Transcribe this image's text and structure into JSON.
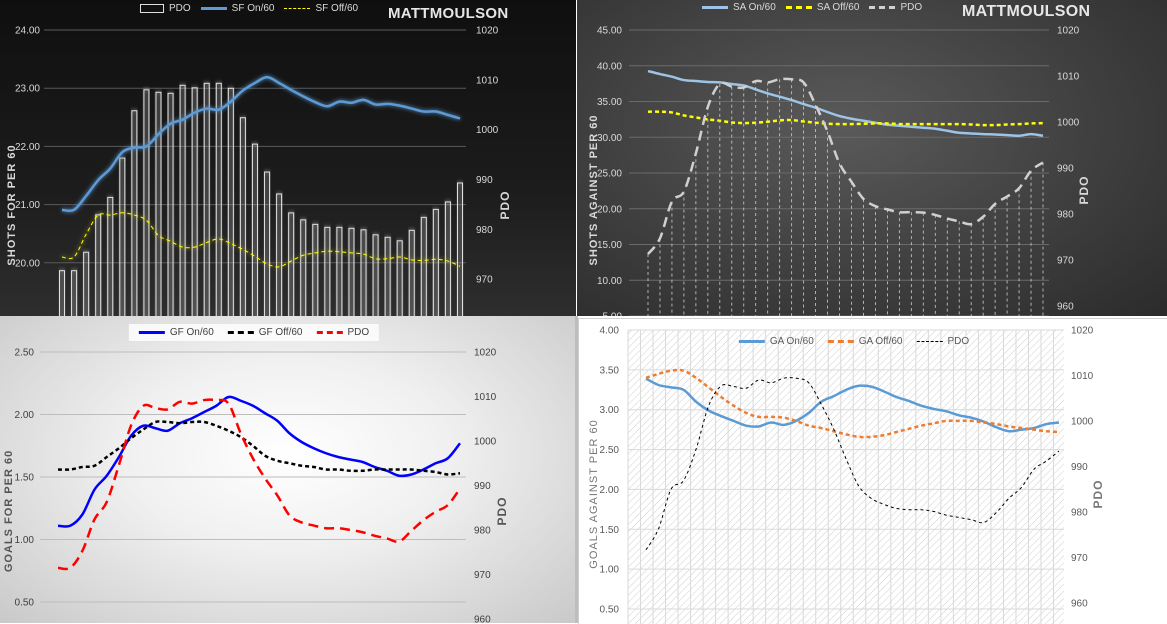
{
  "chart_data": [
    {
      "type": "bar+line",
      "watermark": "MATTMOULSON",
      "ylabel": "SHOTS FOR PER 60",
      "y2label": "PDO",
      "ylim": [
        19,
        24
      ],
      "y2lim": [
        960,
        1020
      ],
      "yticks": [
        "24.00",
        "23.00",
        "22.00",
        "21.00",
        "20.00"
      ],
      "y2ticks": [
        "1020",
        "1010",
        "1000",
        "990",
        "980",
        "970"
      ],
      "grid": true,
      "legend": "top-center",
      "series": [
        {
          "name": "PDO",
          "axis": "right",
          "kind": "bar",
          "color": "#e0e0e0",
          "values": [
            971.7,
            971.7,
            975.4,
            982.9,
            986.4,
            994.3,
            1003.8,
            1008.0,
            1007.5,
            1007.3,
            1008.9,
            1008.4,
            1009.3,
            1009.3,
            1008.3,
            1002.4,
            997.1,
            991.5,
            987.1,
            983.3,
            981.9,
            981.0,
            980.4,
            980.4,
            980.2,
            979.9,
            978.9,
            978.4,
            977.7,
            979.8,
            982.4,
            984.0,
            985.5,
            989.3
          ]
        },
        {
          "name": "SF On/60",
          "axis": "left",
          "kind": "line",
          "color": "#5b9bd5",
          "values": [
            20.91,
            20.91,
            21.15,
            21.42,
            21.62,
            21.9,
            21.98,
            22.0,
            22.21,
            22.39,
            22.46,
            22.58,
            22.65,
            22.63,
            22.77,
            22.96,
            23.09,
            23.19,
            23.09,
            22.97,
            22.86,
            22.76,
            22.69,
            22.77,
            22.75,
            22.8,
            22.72,
            22.73,
            22.7,
            22.65,
            22.6,
            22.6,
            22.54,
            22.48
          ]
        },
        {
          "name": "SF Off/60",
          "axis": "left",
          "kind": "dashed",
          "color": "#ffff00",
          "values": [
            20.1,
            20.1,
            20.49,
            20.82,
            20.82,
            20.86,
            20.82,
            20.73,
            20.47,
            20.37,
            20.27,
            20.27,
            20.35,
            20.41,
            20.33,
            20.23,
            20.11,
            19.98,
            19.93,
            20.03,
            20.13,
            20.17,
            20.2,
            20.19,
            20.17,
            20.15,
            20.07,
            20.07,
            20.1,
            20.05,
            20.04,
            20.06,
            20.03,
            19.94
          ]
        }
      ]
    },
    {
      "type": "line",
      "watermark": "MATTMOULSON",
      "ylabel": "SHOTS AGAINST PER 60",
      "y2label": "PDO",
      "ylim": [
        5,
        45
      ],
      "y2lim": [
        960,
        1020
      ],
      "yticks": [
        "45.00",
        "40.00",
        "35.00",
        "30.00",
        "25.00",
        "20.00",
        "15.00",
        "10.00",
        "5.00"
      ],
      "y2ticks": [
        "1020",
        "1010",
        "1000",
        "990",
        "980",
        "970",
        "960"
      ],
      "grid": true,
      "legend": "top-center",
      "series": [
        {
          "name": "SA On/60",
          "axis": "left",
          "kind": "line",
          "color": "#9dc3e6",
          "values": [
            39.26,
            38.84,
            38.47,
            38.0,
            37.86,
            37.72,
            37.67,
            37.44,
            37.25,
            36.69,
            36.13,
            35.67,
            35.2,
            34.64,
            34.13,
            33.52,
            32.96,
            32.59,
            32.31,
            32.03,
            31.75,
            31.61,
            31.47,
            31.33,
            31.19,
            30.91,
            30.63,
            30.53,
            30.44,
            30.39,
            30.3,
            30.21,
            30.44,
            30.21
          ]
        },
        {
          "name": "SA Off/60",
          "axis": "left",
          "kind": "dashed",
          "color": "#ffff00",
          "values": [
            33.57,
            33.57,
            33.47,
            33.05,
            32.77,
            32.49,
            32.31,
            32.07,
            31.98,
            32.03,
            32.17,
            32.36,
            32.4,
            32.21,
            32.03,
            31.89,
            31.84,
            31.84,
            31.89,
            31.93,
            31.93,
            31.84,
            31.84,
            31.84,
            31.84,
            31.84,
            31.84,
            31.79,
            31.7,
            31.7,
            31.79,
            31.84,
            31.93,
            31.98
          ]
        },
        {
          "name": "PDO",
          "axis": "right",
          "kind": "longdash",
          "color": "#d0d0d0",
          "values": [
            971.3,
            974.7,
            982.7,
            984.9,
            993.2,
            1003.3,
            1008.3,
            1007.7,
            1007.5,
            1008.9,
            1008.6,
            1009.3,
            1009.3,
            1008.6,
            1003.7,
            997.9,
            991.0,
            987.0,
            983.3,
            981.7,
            981.0,
            980.4,
            980.4,
            980.3,
            979.8,
            979.0,
            978.4,
            977.8,
            979.4,
            982.2,
            983.8,
            985.6,
            989.4,
            991.2
          ]
        }
      ]
    },
    {
      "type": "line",
      "ylabel": "GOALS FOR PER 60",
      "y2label": "PDO",
      "ylim": [
        0.5,
        2.5
      ],
      "y2lim": [
        960,
        1020
      ],
      "yticks": [
        "2.50",
        "2.00",
        "1.50",
        "1.00",
        "0.50"
      ],
      "y2ticks": [
        "1020",
        "1010",
        "1000",
        "990",
        "980",
        "970",
        "960"
      ],
      "grid": true,
      "legend": "top-center",
      "series": [
        {
          "name": "GF On/60",
          "axis": "left",
          "kind": "line",
          "color": "#0000ff",
          "values": [
            1.11,
            1.11,
            1.2,
            1.4,
            1.51,
            1.66,
            1.83,
            1.91,
            1.89,
            1.87,
            1.93,
            1.97,
            2.02,
            2.07,
            2.14,
            2.11,
            2.07,
            2.01,
            1.95,
            1.85,
            1.78,
            1.73,
            1.69,
            1.66,
            1.64,
            1.62,
            1.58,
            1.55,
            1.51,
            1.52,
            1.56,
            1.61,
            1.65,
            1.77
          ]
        },
        {
          "name": "GF Off/60",
          "axis": "left",
          "kind": "dashed",
          "color": "#000000",
          "values": [
            1.56,
            1.56,
            1.58,
            1.59,
            1.66,
            1.73,
            1.81,
            1.88,
            1.94,
            1.94,
            1.93,
            1.94,
            1.94,
            1.91,
            1.87,
            1.82,
            1.75,
            1.67,
            1.63,
            1.61,
            1.59,
            1.58,
            1.56,
            1.56,
            1.55,
            1.55,
            1.56,
            1.56,
            1.56,
            1.56,
            1.55,
            1.54,
            1.52,
            1.53
          ]
        },
        {
          "name": "PDO",
          "axis": "right",
          "kind": "longdash",
          "color": "#ff0000",
          "values": [
            971.5,
            971.5,
            975.3,
            982.4,
            986.3,
            994.6,
            1003.5,
            1007.9,
            1007.4,
            1007.1,
            1008.8,
            1008.4,
            1009.2,
            1009.2,
            1008.4,
            1001.7,
            996.1,
            991.6,
            987.8,
            983.3,
            981.7,
            981.0,
            980.4,
            980.4,
            980.0,
            979.5,
            978.7,
            978.1,
            977.4,
            979.8,
            982.2,
            984.1,
            985.6,
            989.3
          ]
        }
      ]
    },
    {
      "type": "line",
      "ylabel": "GOALS AGAINST PER 60",
      "y2label": "PDO",
      "ylim": [
        0.5,
        4.0
      ],
      "y2lim": [
        960,
        1020
      ],
      "yticks": [
        "4.00",
        "3.50",
        "3.00",
        "2.50",
        "2.00",
        "1.50",
        "1.00",
        "0.50"
      ],
      "y2ticks": [
        "1020",
        "1010",
        "1000",
        "990",
        "980",
        "970",
        "960"
      ],
      "grid": true,
      "legend": "top-center",
      "series": [
        {
          "name": "GA On/60",
          "axis": "left",
          "kind": "line",
          "color": "#5b9bd5",
          "values": [
            3.39,
            3.31,
            3.28,
            3.25,
            3.1,
            2.99,
            2.92,
            2.86,
            2.8,
            2.79,
            2.84,
            2.81,
            2.86,
            2.96,
            3.1,
            3.17,
            3.25,
            3.3,
            3.29,
            3.23,
            3.16,
            3.11,
            3.05,
            3.01,
            2.98,
            2.93,
            2.9,
            2.85,
            2.78,
            2.73,
            2.75,
            2.77,
            2.82,
            2.84
          ]
        },
        {
          "name": "GA Off/60",
          "axis": "left",
          "kind": "dashed",
          "color": "#ed7d31",
          "values": [
            3.4,
            3.45,
            3.49,
            3.49,
            3.4,
            3.28,
            3.16,
            3.05,
            2.96,
            2.91,
            2.91,
            2.9,
            2.86,
            2.8,
            2.77,
            2.73,
            2.69,
            2.66,
            2.66,
            2.68,
            2.72,
            2.76,
            2.8,
            2.83,
            2.86,
            2.86,
            2.86,
            2.84,
            2.82,
            2.79,
            2.77,
            2.75,
            2.73,
            2.72
          ]
        },
        {
          "name": "PDO",
          "axis": "right",
          "kind": "smalldash",
          "color": "#000000",
          "values": [
            971.7,
            976.3,
            985.0,
            986.9,
            993.8,
            1003.3,
            1007.7,
            1007.6,
            1007.2,
            1009.0,
            1008.4,
            1009.4,
            1009.4,
            1008.4,
            1003.7,
            998.2,
            991.6,
            985.7,
            983.0,
            981.7,
            980.8,
            980.5,
            980.5,
            980.1,
            979.3,
            978.8,
            978.3,
            977.7,
            979.9,
            983.0,
            985.4,
            989.4,
            991.2,
            993.4
          ]
        }
      ]
    }
  ]
}
